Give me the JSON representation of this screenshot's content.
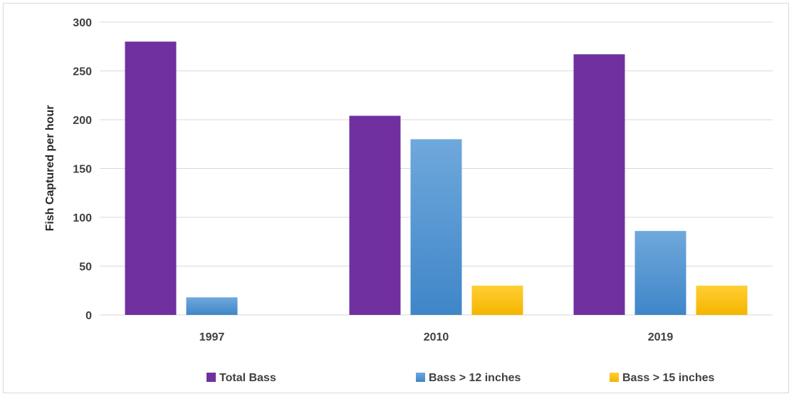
{
  "chart_data": {
    "type": "bar",
    "categories": [
      "1997",
      "2010",
      "2019"
    ],
    "series": [
      {
        "name": "Total Bass",
        "values": [
          280,
          204,
          267
        ],
        "color": "#7030a0"
      },
      {
        "name": "Bass  > 12 inches",
        "values": [
          18,
          180,
          86
        ],
        "color": "#5b9bd5"
      },
      {
        "name": "Bass  > 15 inches",
        "values": [
          null,
          30,
          30
        ],
        "color": "#ffc000"
      }
    ],
    "title": "",
    "xlabel": "",
    "ylabel": "Fish Captured per hour",
    "ylim": [
      0,
      300
    ],
    "yticks": [
      0,
      50,
      100,
      150,
      200,
      250,
      300
    ],
    "grid": true,
    "legend_position": "bottom"
  }
}
